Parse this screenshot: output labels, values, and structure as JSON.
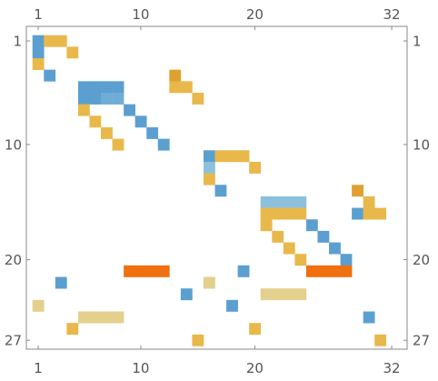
{
  "chart_data": {
    "type": "heatmap",
    "title": "",
    "xlabel": "",
    "ylabel": "",
    "xlim": [
      1,
      32
    ],
    "ylim": [
      1,
      27
    ],
    "grid": false,
    "legend": "none",
    "x_ticks": [
      1,
      10,
      20,
      32
    ],
    "y_ticks": [
      1,
      10,
      20,
      27
    ],
    "colors": {
      "blue": "#5b9fd0",
      "blue_mid": "#70add6",
      "blue_light": "#8cc0dc",
      "yellow": "#e8b84a",
      "yellow_dark": "#e0a030",
      "tan": "#e2d08c",
      "orange": "#f07010"
    },
    "cells": [
      {
        "row": 1,
        "col": 1,
        "color": "blue"
      },
      {
        "row": 2,
        "col": 1,
        "color": "blue"
      },
      {
        "row": 1,
        "col": 2,
        "color": "yellow"
      },
      {
        "row": 1,
        "col": 3,
        "color": "yellow"
      },
      {
        "row": 2,
        "col": 4,
        "color": "yellow"
      },
      {
        "row": 3,
        "col": 1,
        "color": "yellow"
      },
      {
        "row": 4,
        "col": 2,
        "color": "blue"
      },
      {
        "row": 4,
        "col": 13,
        "color": "yellow_dark"
      },
      {
        "row": 5,
        "col": 13,
        "color": "yellow"
      },
      {
        "row": 5,
        "col": 14,
        "color": "yellow"
      },
      {
        "row": 6,
        "col": 15,
        "color": "yellow"
      },
      {
        "row": 5,
        "col": 5,
        "color": "blue"
      },
      {
        "row": 5,
        "col": 6,
        "color": "blue"
      },
      {
        "row": 5,
        "col": 7,
        "color": "blue"
      },
      {
        "row": 5,
        "col": 8,
        "color": "blue"
      },
      {
        "row": 6,
        "col": 5,
        "color": "blue"
      },
      {
        "row": 6,
        "col": 6,
        "color": "blue"
      },
      {
        "row": 6,
        "col": 7,
        "color": "blue_mid"
      },
      {
        "row": 6,
        "col": 8,
        "color": "blue_mid"
      },
      {
        "row": 7,
        "col": 5,
        "color": "yellow"
      },
      {
        "row": 8,
        "col": 6,
        "color": "yellow"
      },
      {
        "row": 9,
        "col": 7,
        "color": "yellow"
      },
      {
        "row": 10,
        "col": 8,
        "color": "yellow"
      },
      {
        "row": 7,
        "col": 9,
        "color": "blue"
      },
      {
        "row": 8,
        "col": 10,
        "color": "blue"
      },
      {
        "row": 9,
        "col": 11,
        "color": "blue"
      },
      {
        "row": 10,
        "col": 12,
        "color": "blue"
      },
      {
        "row": 11,
        "col": 16,
        "color": "blue"
      },
      {
        "row": 11,
        "col": 17,
        "color": "yellow"
      },
      {
        "row": 11,
        "col": 18,
        "color": "yellow"
      },
      {
        "row": 11,
        "col": 19,
        "color": "yellow"
      },
      {
        "row": 12,
        "col": 16,
        "color": "blue_light"
      },
      {
        "row": 12,
        "col": 20,
        "color": "yellow"
      },
      {
        "row": 13,
        "col": 16,
        "color": "yellow"
      },
      {
        "row": 14,
        "col": 17,
        "color": "blue"
      },
      {
        "row": 14,
        "col": 29,
        "color": "yellow_dark"
      },
      {
        "row": 15,
        "col": 30,
        "color": "yellow"
      },
      {
        "row": 16,
        "col": 29,
        "color": "blue"
      },
      {
        "row": 16,
        "col": 30,
        "color": "yellow"
      },
      {
        "row": 16,
        "col": 31,
        "color": "yellow"
      },
      {
        "row": 15,
        "col": 21,
        "color": "blue_light"
      },
      {
        "row": 15,
        "col": 22,
        "color": "blue_light"
      },
      {
        "row": 15,
        "col": 23,
        "color": "blue_light"
      },
      {
        "row": 15,
        "col": 24,
        "color": "blue_light"
      },
      {
        "row": 16,
        "col": 21,
        "color": "yellow"
      },
      {
        "row": 16,
        "col": 22,
        "color": "yellow"
      },
      {
        "row": 16,
        "col": 23,
        "color": "yellow"
      },
      {
        "row": 16,
        "col": 24,
        "color": "yellow"
      },
      {
        "row": 17,
        "col": 21,
        "color": "yellow"
      },
      {
        "row": 18,
        "col": 22,
        "color": "yellow"
      },
      {
        "row": 19,
        "col": 23,
        "color": "yellow"
      },
      {
        "row": 20,
        "col": 24,
        "color": "yellow"
      },
      {
        "row": 17,
        "col": 25,
        "color": "blue"
      },
      {
        "row": 18,
        "col": 26,
        "color": "blue"
      },
      {
        "row": 19,
        "col": 27,
        "color": "blue"
      },
      {
        "row": 20,
        "col": 28,
        "color": "blue"
      },
      {
        "row": 21,
        "col": 9,
        "color": "orange"
      },
      {
        "row": 21,
        "col": 10,
        "color": "orange"
      },
      {
        "row": 21,
        "col": 11,
        "color": "orange"
      },
      {
        "row": 21,
        "col": 12,
        "color": "orange"
      },
      {
        "row": 21,
        "col": 19,
        "color": "blue"
      },
      {
        "row": 21,
        "col": 25,
        "color": "orange"
      },
      {
        "row": 21,
        "col": 26,
        "color": "orange"
      },
      {
        "row": 21,
        "col": 27,
        "color": "orange"
      },
      {
        "row": 21,
        "col": 28,
        "color": "orange"
      },
      {
        "row": 22,
        "col": 3,
        "color": "blue"
      },
      {
        "row": 22,
        "col": 16,
        "color": "tan"
      },
      {
        "row": 23,
        "col": 14,
        "color": "blue"
      },
      {
        "row": 23,
        "col": 21,
        "color": "tan"
      },
      {
        "row": 23,
        "col": 22,
        "color": "tan"
      },
      {
        "row": 23,
        "col": 23,
        "color": "tan"
      },
      {
        "row": 23,
        "col": 24,
        "color": "tan"
      },
      {
        "row": 24,
        "col": 1,
        "color": "tan"
      },
      {
        "row": 24,
        "col": 18,
        "color": "blue"
      },
      {
        "row": 25,
        "col": 5,
        "color": "tan"
      },
      {
        "row": 25,
        "col": 6,
        "color": "tan"
      },
      {
        "row": 25,
        "col": 7,
        "color": "tan"
      },
      {
        "row": 25,
        "col": 8,
        "color": "tan"
      },
      {
        "row": 25,
        "col": 30,
        "color": "blue"
      },
      {
        "row": 26,
        "col": 4,
        "color": "yellow"
      },
      {
        "row": 26,
        "col": 20,
        "color": "yellow"
      },
      {
        "row": 27,
        "col": 15,
        "color": "yellow"
      },
      {
        "row": 27,
        "col": 31,
        "color": "yellow"
      }
    ]
  }
}
